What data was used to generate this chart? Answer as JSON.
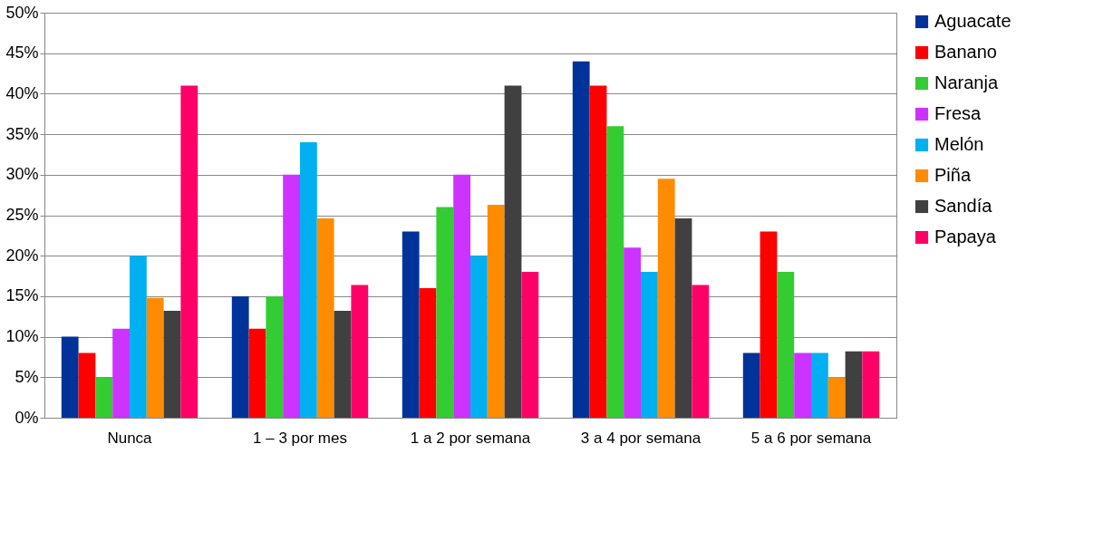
{
  "chart_data": {
    "type": "bar",
    "categories": [
      "Nunca",
      "1 – 3 por mes",
      "1 a 2 por semana",
      "3 a 4 por semana",
      "5 a 6 por semana"
    ],
    "series": [
      {
        "name": "Aguacate",
        "color": "#003399",
        "values": [
          10,
          15,
          23,
          44,
          8
        ]
      },
      {
        "name": "Banano",
        "color": "#ff0000",
        "values": [
          8,
          11,
          16,
          41,
          23
        ]
      },
      {
        "name": "Naranja",
        "color": "#33cc33",
        "values": [
          5,
          15,
          26,
          36,
          18
        ]
      },
      {
        "name": "Fresa",
        "color": "#cc33ff",
        "values": [
          11,
          30,
          30,
          21,
          8
        ]
      },
      {
        "name": "Melón",
        "color": "#00b0f0",
        "values": [
          20,
          34,
          20,
          18,
          8
        ]
      },
      {
        "name": "Piña",
        "color": "#ff8c00",
        "values": [
          14.8,
          24.6,
          26.3,
          29.5,
          5
        ]
      },
      {
        "name": "Sandía",
        "color": "#404040",
        "values": [
          13.2,
          13.2,
          41,
          24.6,
          8.2
        ]
      },
      {
        "name": "Papaya",
        "color": "#ff0066",
        "values": [
          41,
          16.4,
          18,
          16.4,
          8.2
        ]
      }
    ],
    "ylim": [
      0,
      50
    ],
    "yticks": [
      {
        "value": 0,
        "label": "0%"
      },
      {
        "value": 5,
        "label": "5%"
      },
      {
        "value": 10,
        "label": "10%"
      },
      {
        "value": 15,
        "label": "15%"
      },
      {
        "value": 20,
        "label": "20%"
      },
      {
        "value": 25,
        "label": "25%"
      },
      {
        "value": 30,
        "label": "30%"
      },
      {
        "value": 35,
        "label": "35%"
      },
      {
        "value": 40,
        "label": "40%"
      },
      {
        "value": 45,
        "label": "45%"
      },
      {
        "value": 50,
        "label": "50%"
      }
    ],
    "grid": "y",
    "legend": "right"
  }
}
